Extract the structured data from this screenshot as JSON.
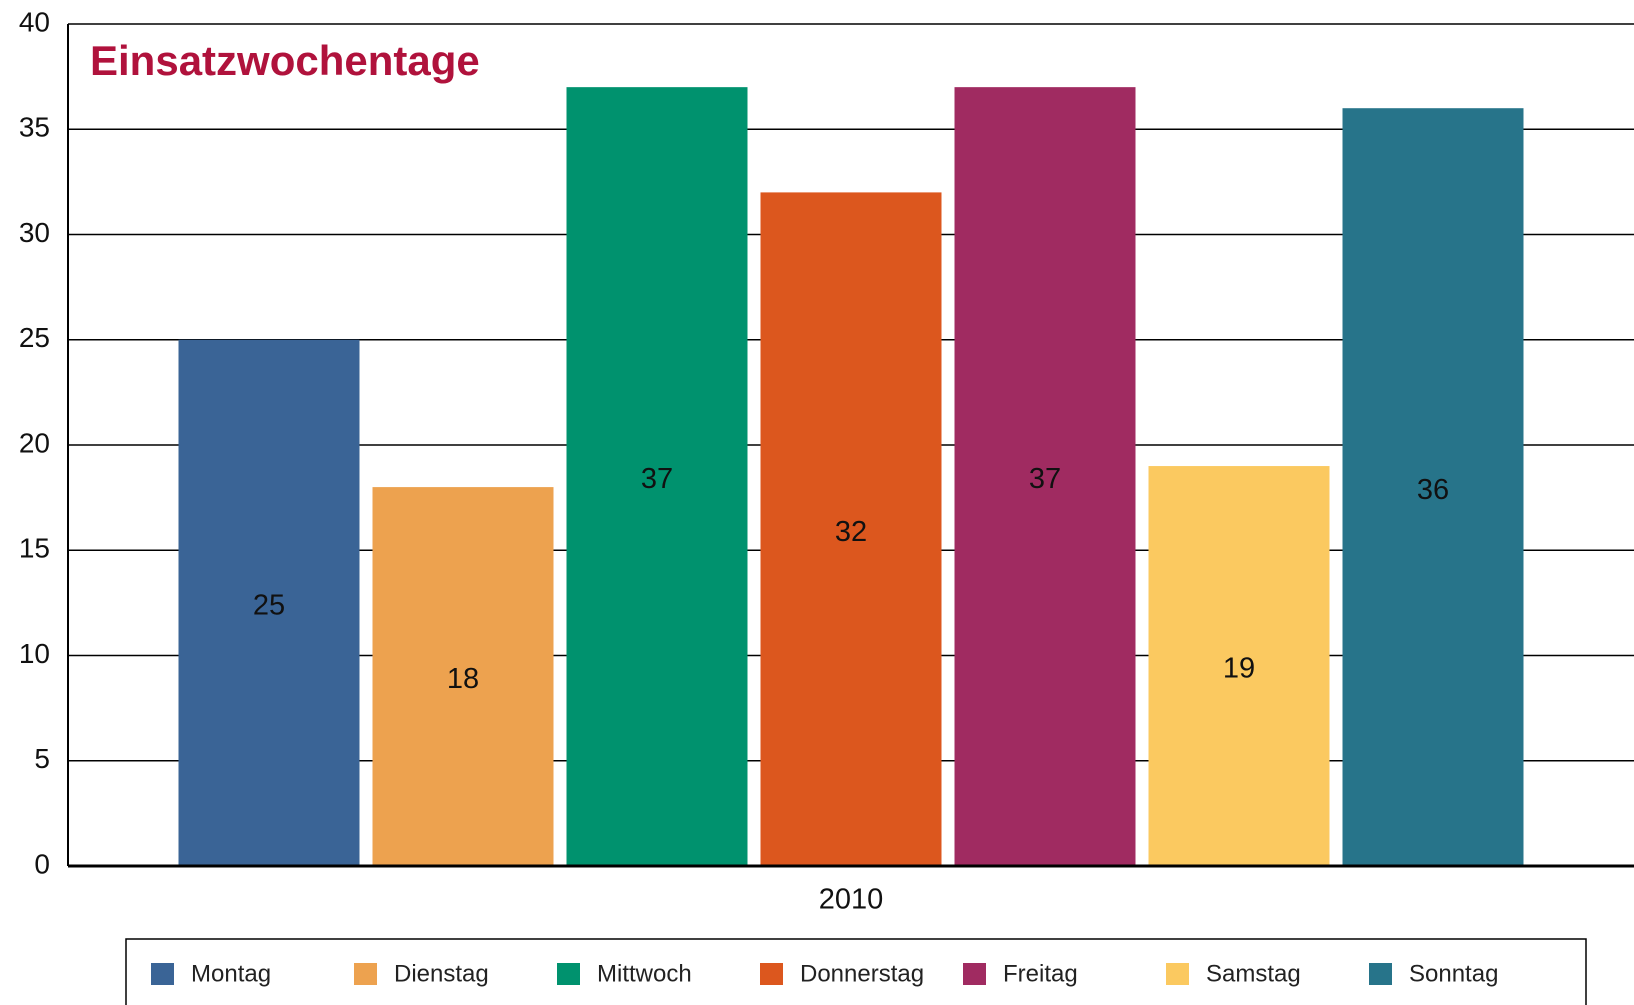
{
  "chart_data": {
    "type": "bar",
    "title": "Einsatzwochentage",
    "title_color": "#b0123c",
    "categories": [
      "2010"
    ],
    "series": [
      {
        "name": "Montag",
        "color": "#3a6496",
        "values": [
          25
        ]
      },
      {
        "name": "Dienstag",
        "color": "#eda24f",
        "values": [
          18
        ]
      },
      {
        "name": "Mittwoch",
        "color": "#00926e",
        "values": [
          37
        ]
      },
      {
        "name": "Donnerstag",
        "color": "#dc571e",
        "values": [
          32
        ]
      },
      {
        "name": "Freitag",
        "color": "#a02b61",
        "values": [
          37
        ]
      },
      {
        "name": "Samstag",
        "color": "#fbc960",
        "values": [
          19
        ]
      },
      {
        "name": "Sonntag",
        "color": "#27748a",
        "values": [
          36
        ]
      }
    ],
    "ylim": [
      0,
      40
    ],
    "yticks": [
      0,
      5,
      10,
      15,
      20,
      25,
      30,
      35,
      40
    ],
    "grid": true,
    "legend": "bottom"
  }
}
